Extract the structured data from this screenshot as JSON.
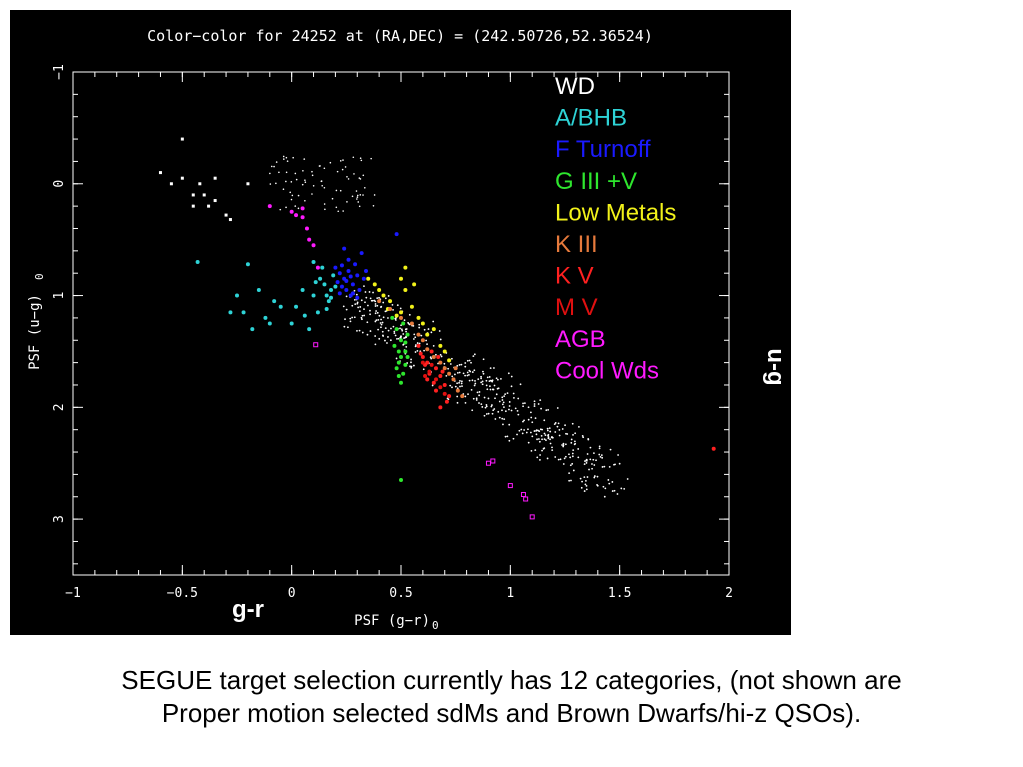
{
  "caption": {
    "line1": "SEGUE target selection currently has 12 categories, (not shown are",
    "line2": "Proper motion selected sdMs and Brown Dwarfs/hi-z QSOs)."
  },
  "colors": {
    "background": "#000000",
    "axes": "#ffffff",
    "WD": "#ffffff",
    "A/BHB": "#2ed3d6",
    "F Turnoff": "#1a1aff",
    "G III +V": "#2ee62e",
    "Low Metals": "#f2f21a",
    "K III": "#e67a3c",
    "K V": "#ff2020",
    "M V": "#e01010",
    "AGB": "#ff1aff",
    "Cool Wds": "#ff1aff"
  },
  "chart_data": {
    "type": "scatter",
    "title": "Color−color for 24252 at (RA,DEC) = (242.50726,52.36524)",
    "xlabel": "PSF (g−r)",
    "xlabel_sub": "0",
    "ylabel": "PSF (u−g)",
    "ylabel_sub": "0",
    "xlim": [
      -1,
      2
    ],
    "ylim": [
      3.5,
      -1
    ],
    "y_inverted": true,
    "xticks": [
      -1,
      -0.5,
      0,
      0.5,
      1,
      1.5,
      2
    ],
    "xtick_labels": [
      "−1",
      "−0.5",
      "0",
      "0.5",
      "1",
      "1.5",
      "2"
    ],
    "yticks": [
      -1,
      0,
      1,
      2,
      3
    ],
    "ytick_labels": [
      "−1",
      "0",
      "1",
      "2",
      "3"
    ],
    "annotation_x": "g-r",
    "annotation_y": "u-g",
    "legend_position": "top-right",
    "legend": [
      "WD",
      "A/BHB",
      "F Turnoff",
      "G III +V",
      "Low Metals",
      "K III",
      "K V",
      "M V",
      "AGB",
      "Cool Wds"
    ],
    "series": [
      {
        "name": "WD",
        "points": [
          [
            -0.6,
            -0.1
          ],
          [
            -0.55,
            0.0
          ],
          [
            -0.5,
            -0.05
          ],
          [
            -0.45,
            0.1
          ],
          [
            -0.42,
            0.0
          ],
          [
            -0.4,
            0.1
          ],
          [
            -0.38,
            0.2
          ],
          [
            -0.35,
            0.15
          ],
          [
            -0.3,
            0.28
          ],
          [
            -0.28,
            0.32
          ],
          [
            -0.5,
            -0.4
          ],
          [
            -0.2,
            0.0
          ],
          [
            -0.35,
            -0.05
          ],
          [
            -0.45,
            0.2
          ]
        ]
      },
      {
        "name": "A/BHB",
        "points": [
          [
            -0.43,
            0.7
          ],
          [
            -0.2,
            0.72
          ],
          [
            -0.25,
            1.0
          ],
          [
            -0.22,
            1.15
          ],
          [
            -0.18,
            1.3
          ],
          [
            -0.12,
            1.2
          ],
          [
            -0.05,
            1.1
          ],
          [
            0.0,
            1.25
          ],
          [
            0.05,
            0.95
          ],
          [
            0.1,
            1.0
          ],
          [
            0.13,
            0.85
          ],
          [
            0.15,
            0.9
          ],
          [
            0.16,
            1.0
          ],
          [
            0.18,
            0.95
          ],
          [
            0.17,
            1.05
          ],
          [
            0.12,
            1.15
          ],
          [
            0.08,
            1.3
          ],
          [
            -0.1,
            1.25
          ],
          [
            -0.28,
            1.15
          ],
          [
            0.02,
            1.1
          ],
          [
            0.14,
            0.75
          ],
          [
            0.1,
            0.7
          ],
          [
            0.19,
            0.82
          ],
          [
            0.2,
            0.92
          ],
          [
            0.06,
            1.18
          ],
          [
            -0.15,
            0.95
          ],
          [
            -0.08,
            1.05
          ],
          [
            0.16,
            1.12
          ],
          [
            0.11,
            0.88
          ],
          [
            0.18,
            1.02
          ]
        ]
      },
      {
        "name": "F Turnoff",
        "points": [
          [
            0.2,
            0.75
          ],
          [
            0.22,
            0.8
          ],
          [
            0.24,
            0.85
          ],
          [
            0.26,
            0.78
          ],
          [
            0.28,
            0.9
          ],
          [
            0.3,
            0.82
          ],
          [
            0.25,
            0.95
          ],
          [
            0.27,
            1.0
          ],
          [
            0.23,
            0.92
          ],
          [
            0.29,
            0.72
          ],
          [
            0.31,
            0.95
          ],
          [
            0.33,
            0.85
          ],
          [
            0.21,
            0.88
          ],
          [
            0.26,
            0.68
          ],
          [
            0.32,
            0.62
          ],
          [
            0.24,
            0.58
          ],
          [
            0.28,
            0.98
          ],
          [
            0.22,
            0.98
          ],
          [
            0.34,
            0.78
          ],
          [
            0.3,
            1.02
          ],
          [
            0.27,
            0.83
          ],
          [
            0.25,
            0.87
          ],
          [
            0.23,
            0.73
          ],
          [
            0.48,
            0.45
          ]
        ]
      },
      {
        "name": "G III +V",
        "points": [
          [
            0.48,
            1.3
          ],
          [
            0.5,
            1.4
          ],
          [
            0.52,
            1.5
          ],
          [
            0.49,
            1.6
          ],
          [
            0.51,
            1.7
          ],
          [
            0.53,
            1.35
          ],
          [
            0.5,
            1.55
          ],
          [
            0.47,
            1.45
          ],
          [
            0.52,
            1.62
          ],
          [
            0.49,
            1.72
          ],
          [
            0.51,
            1.25
          ],
          [
            0.53,
            1.55
          ],
          [
            0.48,
            1.65
          ],
          [
            0.5,
            1.78
          ],
          [
            0.52,
            1.42
          ],
          [
            0.46,
            1.2
          ],
          [
            0.49,
            1.5
          ],
          [
            0.5,
            2.65
          ]
        ]
      },
      {
        "name": "Low Metals",
        "points": [
          [
            0.35,
            0.85
          ],
          [
            0.4,
            0.95
          ],
          [
            0.45,
            1.05
          ],
          [
            0.5,
            1.15
          ],
          [
            0.55,
            1.1
          ],
          [
            0.6,
            1.25
          ],
          [
            0.62,
            1.35
          ],
          [
            0.65,
            1.3
          ],
          [
            0.68,
            1.45
          ],
          [
            0.7,
            1.5
          ],
          [
            0.72,
            1.58
          ],
          [
            0.42,
            1.0
          ],
          [
            0.48,
            1.18
          ],
          [
            0.52,
            0.95
          ],
          [
            0.58,
            1.2
          ],
          [
            0.38,
            0.9
          ],
          [
            0.44,
            1.12
          ],
          [
            0.56,
            0.9
          ],
          [
            0.52,
            0.75
          ],
          [
            0.5,
            0.85
          ]
        ]
      },
      {
        "name": "K III",
        "points": [
          [
            0.4,
            1.05
          ],
          [
            0.45,
            1.12
          ],
          [
            0.5,
            1.2
          ],
          [
            0.55,
            1.25
          ],
          [
            0.58,
            1.35
          ],
          [
            0.6,
            1.4
          ],
          [
            0.65,
            1.55
          ],
          [
            0.7,
            1.65
          ],
          [
            0.72,
            1.7
          ],
          [
            0.74,
            1.75
          ],
          [
            0.76,
            1.85
          ],
          [
            0.78,
            1.9
          ],
          [
            0.75,
            1.65
          ],
          [
            0.68,
            1.6
          ],
          [
            0.62,
            1.48
          ]
        ]
      },
      {
        "name": "K V",
        "points": [
          [
            0.58,
            1.45
          ],
          [
            0.6,
            1.55
          ],
          [
            0.62,
            1.6
          ],
          [
            0.64,
            1.5
          ],
          [
            0.66,
            1.65
          ],
          [
            0.68,
            1.72
          ],
          [
            0.7,
            1.8
          ],
          [
            0.63,
            1.7
          ],
          [
            0.61,
            1.62
          ],
          [
            0.67,
            1.55
          ],
          [
            0.65,
            1.78
          ],
          [
            0.69,
            1.68
          ],
          [
            0.59,
            1.52
          ],
          [
            0.72,
            1.9
          ],
          [
            0.66,
            1.85
          ],
          [
            0.71,
            1.95
          ],
          [
            0.62,
            1.75
          ],
          [
            0.68,
            2.0
          ],
          [
            1.93,
            2.37
          ]
        ]
      },
      {
        "name": "M V",
        "points": [
          [
            0.6,
            1.6
          ],
          [
            0.63,
            1.68
          ],
          [
            0.66,
            1.75
          ],
          [
            0.64,
            1.62
          ],
          [
            0.61,
            1.72
          ],
          [
            0.68,
            1.82
          ],
          [
            0.7,
            1.88
          ]
        ]
      },
      {
        "name": "AGB",
        "points": [
          [
            -0.1,
            0.2
          ],
          [
            0.0,
            0.25
          ],
          [
            0.02,
            0.28
          ],
          [
            0.05,
            0.22
          ],
          [
            0.07,
            0.4
          ],
          [
            0.08,
            0.5
          ],
          [
            0.12,
            0.75
          ],
          [
            0.1,
            0.55
          ],
          [
            0.05,
            0.3
          ]
        ]
      },
      {
        "name": "Cool Wds",
        "points": [
          [
            0.9,
            2.5
          ],
          [
            0.92,
            2.48
          ],
          [
            1.0,
            2.7
          ],
          [
            1.06,
            2.78
          ],
          [
            1.07,
            2.82
          ],
          [
            1.1,
            2.98
          ],
          [
            0.11,
            1.44
          ]
        ]
      }
    ]
  }
}
